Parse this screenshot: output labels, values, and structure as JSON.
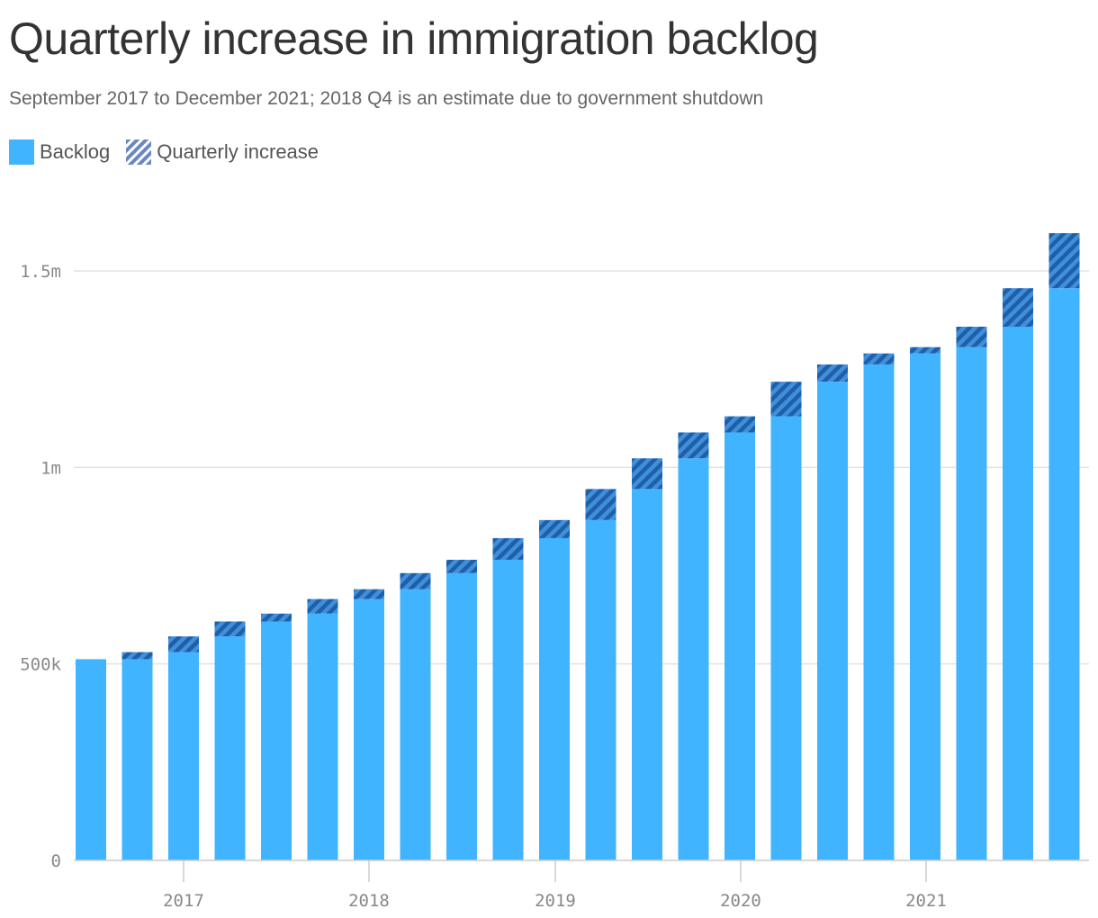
{
  "title": "Quarterly increase in immigration backlog",
  "subtitle": "September 2017 to December 2021; 2018 Q4 is an estimate due to government shutdown",
  "colors": {
    "backlog": "#40b4ff",
    "increase": "#1f5fa8",
    "increase_bg": "#3f8fdb",
    "grid": "#e2e2e2",
    "axis": "#cccccc"
  },
  "chart_data": {
    "type": "bar",
    "stacked": true,
    "legend": [
      "Backlog",
      "Quarterly increase"
    ],
    "x_tick_labels": [
      "2017",
      "2018",
      "2019",
      "2020",
      "2021"
    ],
    "y_tick_labels": [
      "0",
      "500k",
      "1m",
      "1.5m"
    ],
    "y_ticks": [
      0,
      500000,
      1000000,
      1500000
    ],
    "ylim": [
      0,
      1600000
    ],
    "series": [
      {
        "name": "Backlog",
        "values": [
          512000,
          512000,
          530000,
          570000,
          608000,
          628000,
          665000,
          690000,
          731000,
          765000,
          820000,
          866000,
          945000,
          1023000,
          1089000,
          1130000,
          1218000,
          1262000,
          1290000,
          1306000,
          1358000,
          1456000
        ]
      },
      {
        "name": "Quarterly increase",
        "values": [
          0,
          18000,
          40000,
          38000,
          20000,
          37000,
          25000,
          41000,
          34000,
          55000,
          46000,
          79000,
          78000,
          66000,
          41000,
          88000,
          44000,
          28000,
          16000,
          52000,
          98000,
          140000
        ]
      }
    ]
  }
}
